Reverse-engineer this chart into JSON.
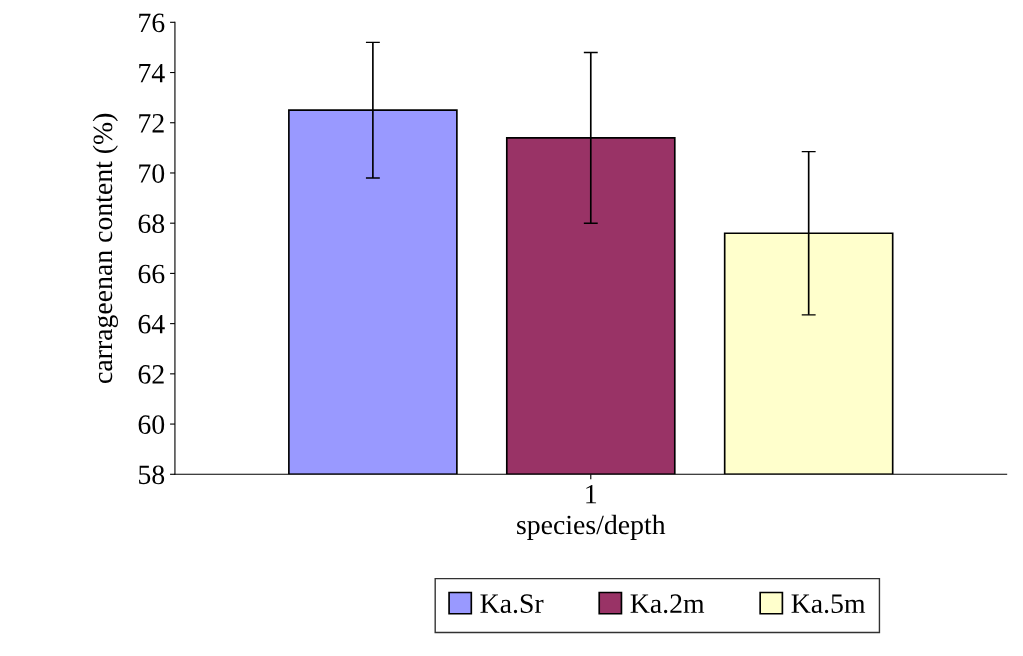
{
  "chart_data": {
    "type": "bar",
    "categories": [
      "1"
    ],
    "xlabel": "species/depth",
    "ylabel": "carrageenan content (%)",
    "series": [
      {
        "name": "Ka.Sr",
        "color": "#9999ff",
        "values": [
          72.5
        ],
        "errors": [
          2.7
        ]
      },
      {
        "name": "Ka.2m",
        "color": "#993366",
        "values": [
          71.4
        ],
        "errors": [
          3.4
        ]
      },
      {
        "name": "Ka.5m",
        "color": "#ffffcc",
        "values": [
          67.6
        ],
        "errors": [
          3.25
        ]
      }
    ],
    "ylim": [
      58,
      76
    ],
    "yticks": [
      58,
      60,
      62,
      64,
      66,
      68,
      70,
      72,
      74,
      76
    ],
    "grid": false,
    "legend": "bottom"
  }
}
